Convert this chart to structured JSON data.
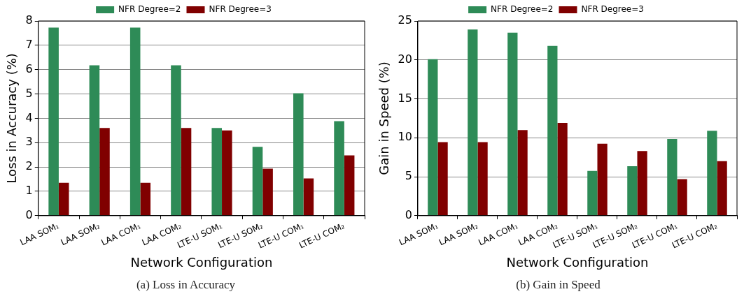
{
  "chart_data": [
    {
      "type": "bar",
      "xlabel": "Network Configuration",
      "ylabel": "Loss in Accuracy (%)",
      "categories": [
        "LAA SOM₁",
        "LAA SOM₂",
        "LAA COM₁",
        "LAA COM₂",
        "LTE-U SOM₁",
        "LTE-U SOM₂",
        "LTE-U COM₁",
        "LTE-U COM₂"
      ],
      "series": [
        {
          "name": "NFR Degree=2",
          "color": "#2e8b57",
          "values": [
            7.73,
            6.18,
            7.73,
            6.18,
            3.6,
            2.83,
            5.03,
            3.88
          ]
        },
        {
          "name": "NFR Degree=3",
          "color": "#800000",
          "values": [
            1.35,
            3.6,
            1.35,
            3.6,
            3.5,
            1.93,
            1.53,
            2.48
          ]
        }
      ],
      "ylim": [
        0,
        8
      ],
      "yticks": [
        0,
        1,
        2,
        3,
        4,
        5,
        6,
        7,
        8
      ],
      "grid": "y",
      "legend": "top",
      "annotations": [
        "(a) Loss in Accuracy"
      ]
    },
    {
      "type": "bar",
      "xlabel": "Network Configuration",
      "ylabel": "Gain in Speed (%)",
      "categories": [
        "LAA SOM₁",
        "LAA SOM₂",
        "LAA COM₁",
        "LAA COM₂",
        "LTE-U SOM₁",
        "LTE-U SOM₂",
        "LTE-U COM₁",
        "LTE-U COM₂"
      ],
      "series": [
        {
          "name": "NFR Degree=2",
          "color": "#2e8b57",
          "values": [
            20.1,
            23.9,
            23.5,
            21.8,
            5.75,
            6.35,
            9.85,
            10.9
          ]
        },
        {
          "name": "NFR Degree=3",
          "color": "#800000",
          "values": [
            9.45,
            9.45,
            11.0,
            11.9,
            9.25,
            8.3,
            4.7,
            7.0
          ]
        }
      ],
      "ylim": [
        0,
        25
      ],
      "yticks": [
        0,
        5,
        10,
        15,
        20,
        25
      ],
      "grid": "y",
      "legend": "top",
      "annotations": [
        "(b) Gain in Speed"
      ]
    }
  ]
}
